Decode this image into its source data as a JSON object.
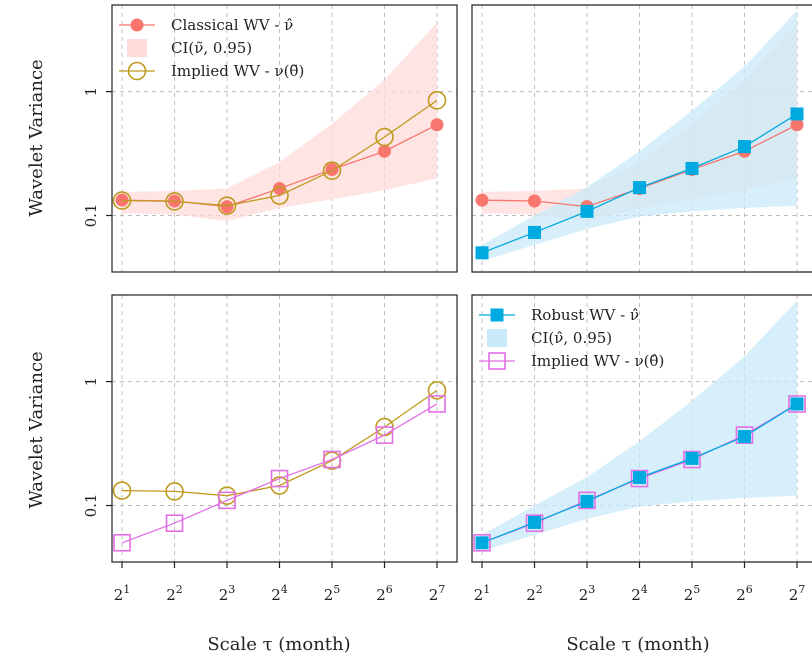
{
  "colors": {
    "classical": "#F8766D",
    "classical_ci": "#FDDCDA",
    "robust": "#00A9E0",
    "robust_ci": "#C9EAF8",
    "implied_classical": "#BF9A1F",
    "implied_robust": "#E36FE6"
  },
  "axis_titles": {
    "ylabel": "Wavelet Variance",
    "xlabel": "Scale τ (month)"
  },
  "chart_data": [
    {
      "panel": "top-left",
      "type": "line",
      "y_scale": "log",
      "ylim": [
        0.035,
        5.0
      ],
      "ytick_labels": [
        "0.1",
        "1"
      ],
      "x_tick_labels": [],
      "grid": true,
      "legend": {
        "position": "top-left",
        "entries": [
          {
            "label": "Classical WV - ν̂",
            "symbol": "dot",
            "color": "#F8766D"
          },
          {
            "label": "CI(ν̃, 0.95)",
            "symbol": "band",
            "color": "#FDDCDA"
          },
          {
            "label": "Implied WV - ν(θ̃)",
            "symbol": "open-circle",
            "color": "#BF9A1F"
          }
        ]
      },
      "x": [
        1,
        2,
        3,
        4,
        5,
        6,
        7
      ],
      "bands": [
        {
          "color": "#FDDCDA",
          "lower": [
            0.104,
            0.102,
            0.09,
            0.115,
            0.135,
            0.16,
            0.2
          ],
          "upper": [
            0.155,
            0.158,
            0.165,
            0.27,
            0.55,
            1.25,
            3.6
          ]
        }
      ],
      "series": [
        {
          "marker": "dot",
          "color": "#F8766D",
          "values": [
            0.133,
            0.131,
            0.118,
            0.165,
            0.235,
            0.33,
            0.54
          ]
        },
        {
          "marker": "open-circle",
          "color": "#BF9A1F",
          "values": [
            0.132,
            0.13,
            0.12,
            0.145,
            0.23,
            0.43,
            0.85
          ]
        }
      ]
    },
    {
      "panel": "top-right",
      "type": "line",
      "y_scale": "log",
      "ylim": [
        0.035,
        5.0
      ],
      "ytick_labels": [],
      "x_tick_labels": [],
      "grid": true,
      "legend": null,
      "x": [
        1,
        2,
        3,
        4,
        5,
        6,
        7
      ],
      "bands": [
        {
          "color": "#FDDCDA",
          "lower": [
            0.104,
            0.102,
            0.09,
            0.115,
            0.135,
            0.16,
            0.2
          ],
          "upper": [
            0.155,
            0.158,
            0.165,
            0.27,
            0.55,
            1.25,
            3.6
          ]
        },
        {
          "color": "#C9EAF8",
          "lower": [
            0.043,
            0.058,
            0.078,
            0.098,
            0.108,
            0.115,
            0.12
          ],
          "upper": [
            0.058,
            0.1,
            0.17,
            0.33,
            0.7,
            1.6,
            4.5
          ]
        }
      ],
      "series": [
        {
          "marker": "dot",
          "color": "#F8766D",
          "values": [
            0.133,
            0.131,
            0.118,
            0.165,
            0.235,
            0.33,
            0.54
          ]
        },
        {
          "marker": "square",
          "color": "#00A9E0",
          "values": [
            0.05,
            0.073,
            0.108,
            0.168,
            0.24,
            0.36,
            0.66
          ]
        }
      ]
    },
    {
      "panel": "bottom-left",
      "type": "line",
      "y_scale": "log",
      "ylim": [
        0.035,
        5.0
      ],
      "ytick_labels": [
        "0.1",
        "1"
      ],
      "x_tick_labels": [
        "2",
        "2",
        "2",
        "2",
        "2",
        "2",
        "2"
      ],
      "x_tick_exponents": [
        "1",
        "2",
        "3",
        "4",
        "5",
        "6",
        "7"
      ],
      "grid": true,
      "legend": null,
      "x": [
        1,
        2,
        3,
        4,
        5,
        6,
        7
      ],
      "bands": [],
      "series": [
        {
          "marker": "open-circle",
          "color": "#BF9A1F",
          "values": [
            0.132,
            0.13,
            0.12,
            0.145,
            0.23,
            0.43,
            0.85
          ]
        },
        {
          "marker": "open-square",
          "color": "#E36FE6",
          "values": [
            0.05,
            0.072,
            0.11,
            0.165,
            0.235,
            0.37,
            0.66
          ]
        }
      ]
    },
    {
      "panel": "bottom-right",
      "type": "line",
      "y_scale": "log",
      "ylim": [
        0.035,
        5.0
      ],
      "ytick_labels": [],
      "x_tick_labels": [
        "2",
        "2",
        "2",
        "2",
        "2",
        "2",
        "2"
      ],
      "x_tick_exponents": [
        "1",
        "2",
        "3",
        "4",
        "5",
        "6",
        "7"
      ],
      "grid": true,
      "legend": {
        "position": "top-left",
        "entries": [
          {
            "label": "Robust WV - ν̂",
            "symbol": "square",
            "color": "#00A9E0"
          },
          {
            "label": "CI(ν̂, 0.95)",
            "symbol": "band",
            "color": "#C9EAF8"
          },
          {
            "label": "Implied WV - ν(θ̂)",
            "symbol": "open-square",
            "color": "#E36FE6"
          }
        ]
      },
      "x": [
        1,
        2,
        3,
        4,
        5,
        6,
        7
      ],
      "bands": [
        {
          "color": "#C9EAF8",
          "lower": [
            0.043,
            0.058,
            0.078,
            0.098,
            0.108,
            0.115,
            0.12
          ],
          "upper": [
            0.058,
            0.1,
            0.17,
            0.33,
            0.7,
            1.6,
            4.5
          ]
        }
      ],
      "series": [
        {
          "marker": "open-square",
          "color": "#E36FE6",
          "values": [
            0.05,
            0.072,
            0.11,
            0.165,
            0.235,
            0.37,
            0.66
          ]
        },
        {
          "marker": "square",
          "color": "#00A9E0",
          "values": [
            0.05,
            0.073,
            0.108,
            0.168,
            0.24,
            0.36,
            0.66
          ]
        }
      ]
    }
  ]
}
